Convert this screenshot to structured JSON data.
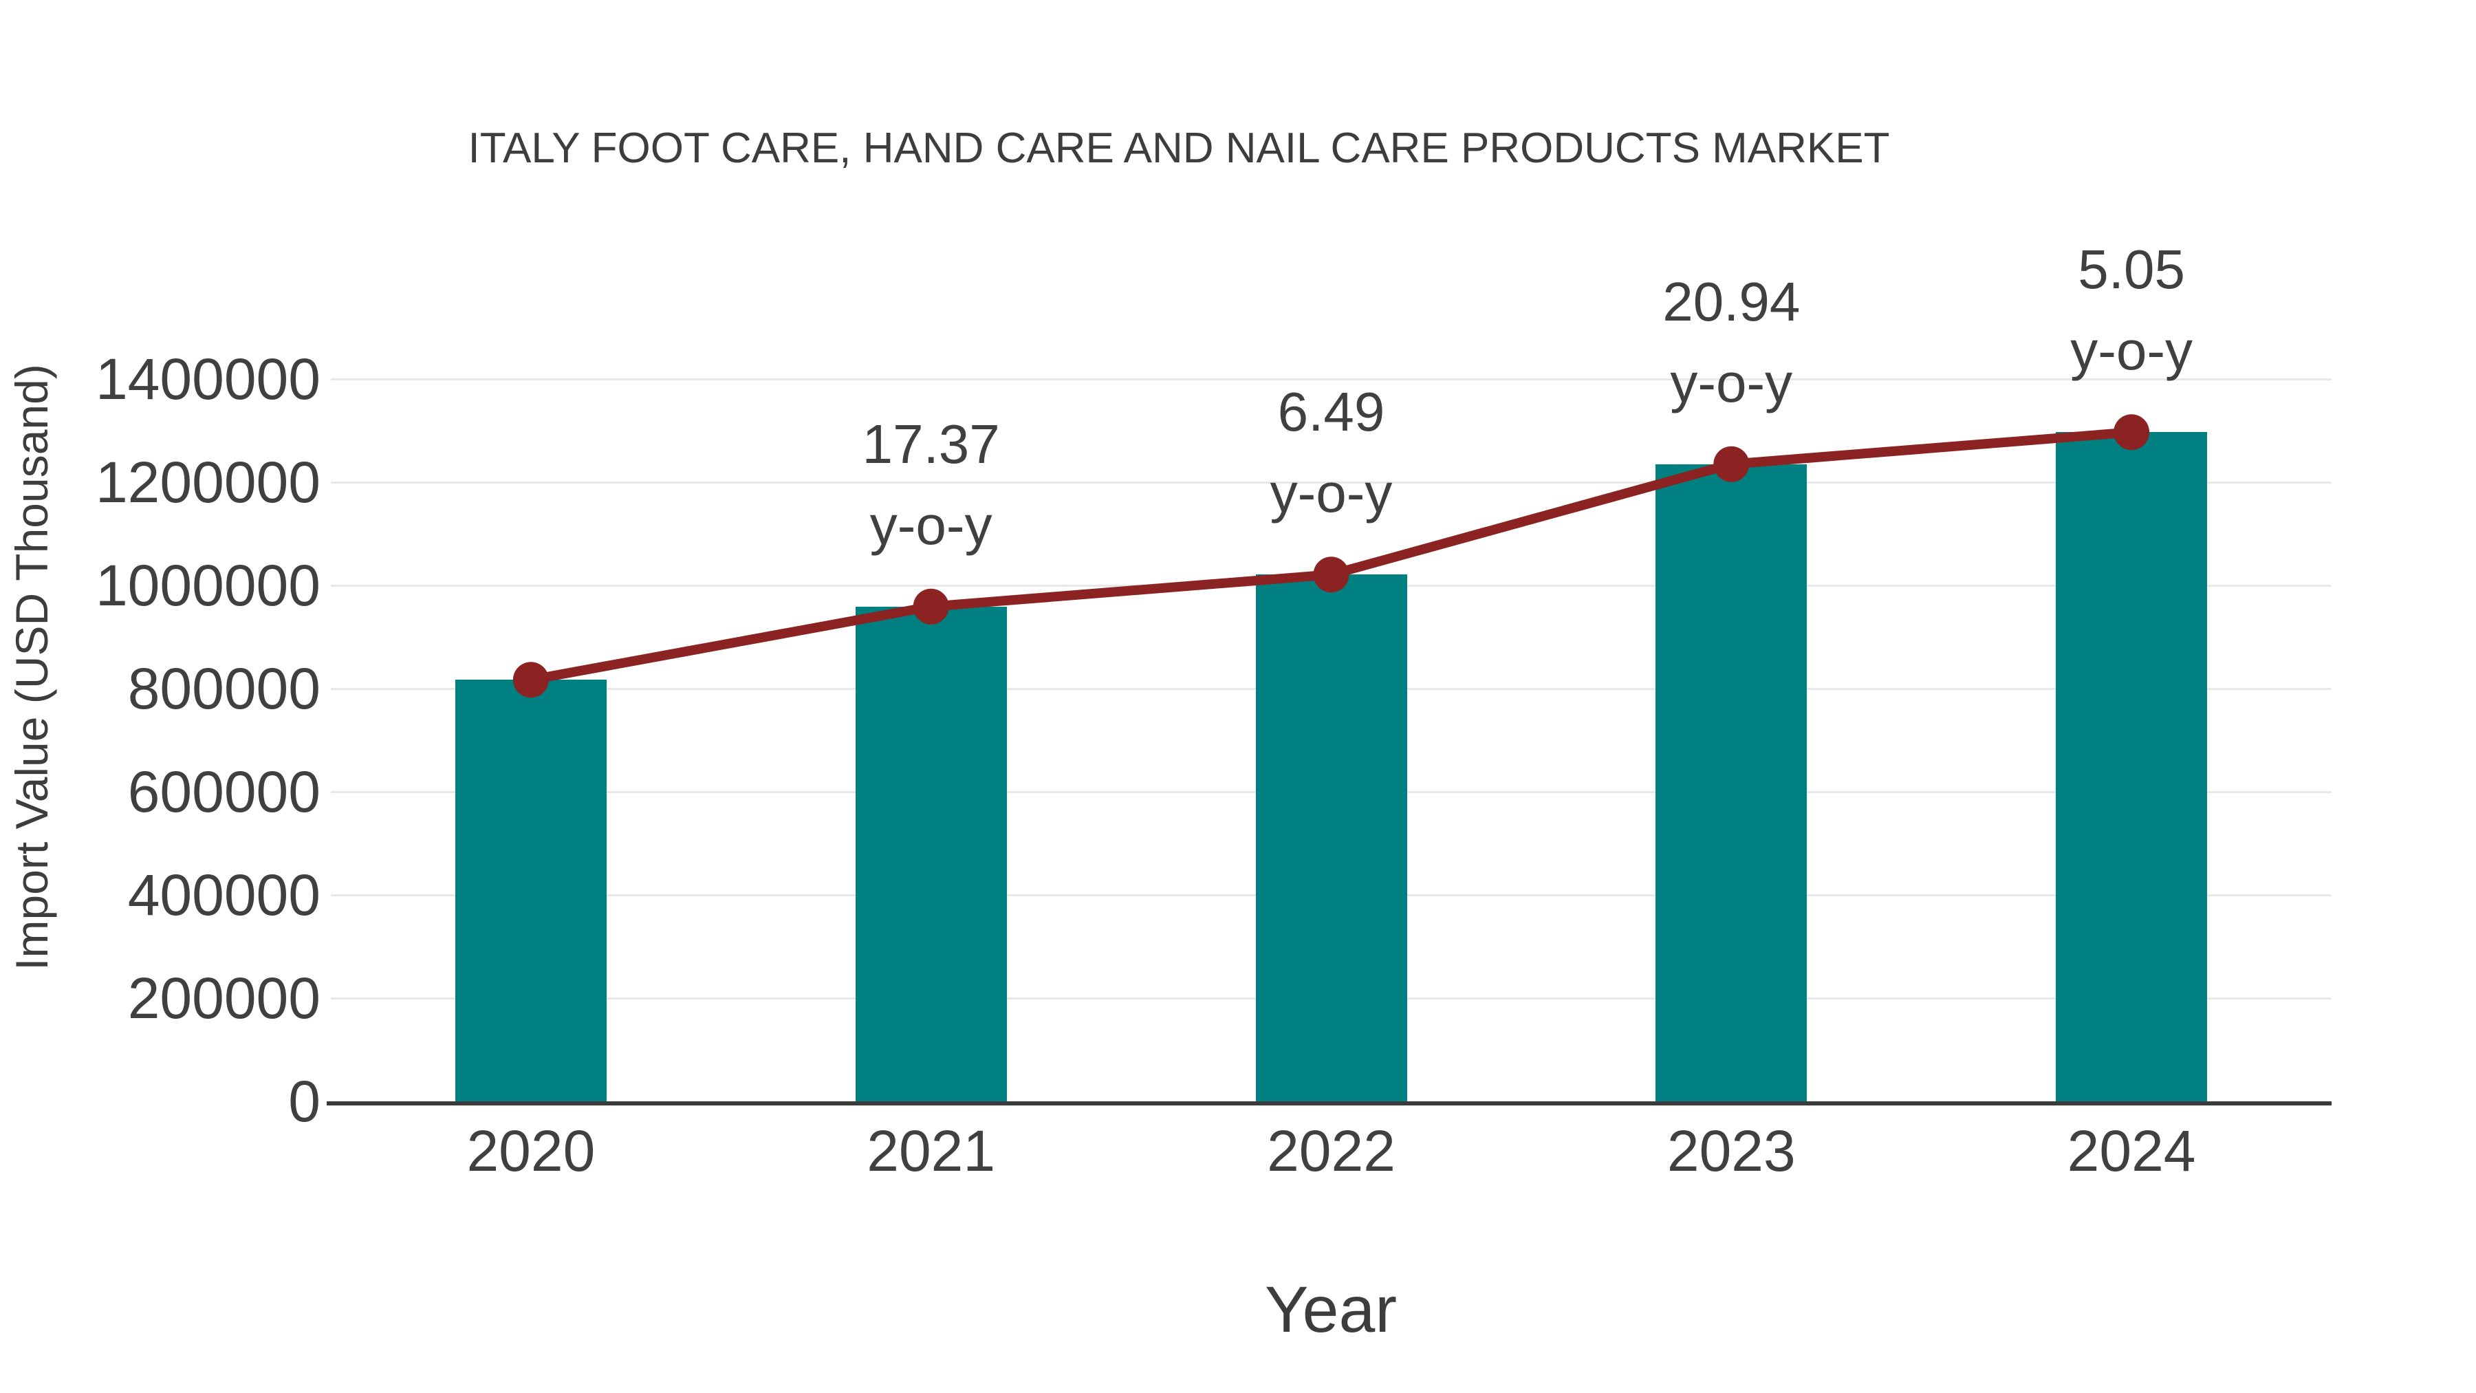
{
  "colors": {
    "bar": "#008080",
    "line": "#8b2323",
    "text": "#404040",
    "grid": "#e8e8e8",
    "axis": "#3a3a3a",
    "background": "#ffffff"
  },
  "chart_data": {
    "type": "bar",
    "title": "ITALY FOOT CARE, HAND CARE AND NAIL CARE PRODUCTS MARKET",
    "xlabel": "Year",
    "ylabel": "Import Value (USD Thousand)",
    "categories": [
      "2020",
      "2021",
      "2022",
      "2023",
      "2024"
    ],
    "series": [
      {
        "name": "Import Value",
        "type": "bar",
        "values": [
          817000,
          959000,
          1021000,
          1235000,
          1297000
        ]
      },
      {
        "name": "y-o-y growth",
        "type": "line",
        "values": [
          817000,
          959000,
          1021000,
          1235000,
          1297000
        ]
      }
    ],
    "annotations": [
      {
        "category": "2021",
        "value": "17.37",
        "suffix": "y-o-y"
      },
      {
        "category": "2022",
        "value": "6.49",
        "suffix": "y-o-y"
      },
      {
        "category": "2023",
        "value": "20.94",
        "suffix": "y-o-y"
      },
      {
        "category": "2024",
        "value": "5.05",
        "suffix": "y-o-y"
      }
    ],
    "ylim": [
      0,
      1400000
    ],
    "yticks": [
      0,
      200000,
      400000,
      600000,
      800000,
      1000000,
      1200000,
      1400000
    ],
    "grid": "horizontal",
    "legend": "none"
  }
}
